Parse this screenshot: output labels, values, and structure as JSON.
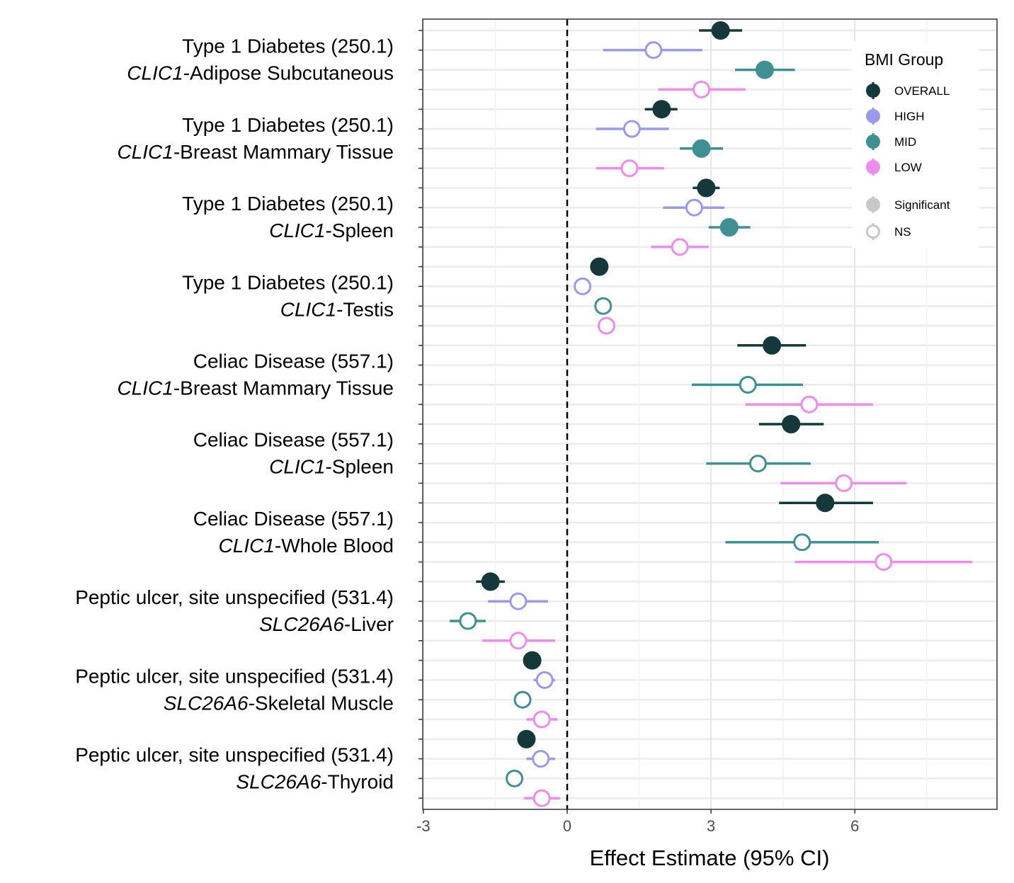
{
  "chart_data": {
    "type": "scatter",
    "subtype": "forest-plot",
    "xlabel": "Effect Estimate (95% CI)",
    "xlim": [
      -3,
      8.9
    ],
    "xticks": [
      -3,
      0,
      3,
      6
    ],
    "xtick_labels": [
      "-3",
      "0",
      "3",
      "6"
    ],
    "reference_line": 0,
    "grid": true,
    "legend": {
      "title": "BMI Group",
      "placement": "top-right",
      "groups": [
        {
          "name": "OVERALL",
          "color": "#15393a"
        },
        {
          "name": "HIGH",
          "color": "#9999ee"
        },
        {
          "name": "MID",
          "color": "#3f9092"
        },
        {
          "name": "LOW",
          "color": "#ee8bee"
        }
      ],
      "shapes": [
        {
          "name": "Significant",
          "filled": true
        },
        {
          "name": "NS",
          "filled": false
        }
      ]
    },
    "panels": [
      {
        "trait": "Type 1 Diabetes (250.1)",
        "gene": "CLIC1",
        "tissue": "-Adipose Subcutaneous",
        "estimates": [
          {
            "group": "OVERALL",
            "est": 3.2,
            "lo": 2.75,
            "hi": 3.65,
            "significant": true
          },
          {
            "group": "HIGH",
            "est": 1.8,
            "lo": 0.75,
            "hi": 2.82,
            "significant": false
          },
          {
            "group": "MID",
            "est": 4.12,
            "lo": 3.5,
            "hi": 4.75,
            "significant": true
          },
          {
            "group": "LOW",
            "est": 2.8,
            "lo": 1.9,
            "hi": 3.72,
            "significant": false
          }
        ]
      },
      {
        "trait": "Type 1 Diabetes (250.1)",
        "gene": "CLIC1",
        "tissue": "-Breast Mammary Tissue",
        "estimates": [
          {
            "group": "OVERALL",
            "est": 1.97,
            "lo": 1.62,
            "hi": 2.3,
            "significant": true
          },
          {
            "group": "HIGH",
            "est": 1.35,
            "lo": 0.6,
            "hi": 2.12,
            "significant": false
          },
          {
            "group": "MID",
            "est": 2.8,
            "lo": 2.35,
            "hi": 3.25,
            "significant": true
          },
          {
            "group": "LOW",
            "est": 1.3,
            "lo": 0.6,
            "hi": 2.02,
            "significant": false
          }
        ]
      },
      {
        "trait": "Type 1 Diabetes (250.1)",
        "gene": "CLIC1",
        "tissue": "-Spleen",
        "estimates": [
          {
            "group": "OVERALL",
            "est": 2.9,
            "lo": 2.62,
            "hi": 3.18,
            "significant": true
          },
          {
            "group": "HIGH",
            "est": 2.65,
            "lo": 2.0,
            "hi": 3.28,
            "significant": false
          },
          {
            "group": "MID",
            "est": 3.38,
            "lo": 2.95,
            "hi": 3.82,
            "significant": true
          },
          {
            "group": "LOW",
            "est": 2.35,
            "lo": 1.75,
            "hi": 2.95,
            "significant": false
          }
        ]
      },
      {
        "trait": "Type 1 Diabetes (250.1)",
        "gene": "CLIC1",
        "tissue": "-Testis",
        "estimates": [
          {
            "group": "OVERALL",
            "est": 0.67,
            "lo": 0.58,
            "hi": 0.76,
            "significant": true
          },
          {
            "group": "HIGH",
            "est": 0.32,
            "lo": 0.22,
            "hi": 0.42,
            "significant": false
          },
          {
            "group": "MID",
            "est": 0.75,
            "lo": 0.66,
            "hi": 0.84,
            "significant": false
          },
          {
            "group": "LOW",
            "est": 0.82,
            "lo": 0.73,
            "hi": 0.91,
            "significant": false
          }
        ]
      },
      {
        "trait": "Celiac Disease (557.1)",
        "gene": "CLIC1",
        "tissue": "-Breast Mammary Tissue",
        "estimates": [
          {
            "group": "OVERALL",
            "est": 4.27,
            "lo": 3.55,
            "hi": 4.98,
            "significant": true
          },
          {
            "group": "MID",
            "est": 3.77,
            "lo": 2.6,
            "hi": 4.92,
            "significant": false
          },
          {
            "group": "LOW",
            "est": 5.05,
            "lo": 3.72,
            "hi": 6.38,
            "significant": false
          }
        ]
      },
      {
        "trait": "Celiac Disease (557.1)",
        "gene": "CLIC1",
        "tissue": "-Spleen",
        "estimates": [
          {
            "group": "OVERALL",
            "est": 4.67,
            "lo": 4.0,
            "hi": 5.35,
            "significant": true
          },
          {
            "group": "MID",
            "est": 3.98,
            "lo": 2.9,
            "hi": 5.08,
            "significant": false
          },
          {
            "group": "LOW",
            "est": 5.77,
            "lo": 4.45,
            "hi": 7.08,
            "significant": false
          }
        ]
      },
      {
        "trait": "Celiac Disease (557.1)",
        "gene": "CLIC1",
        "tissue": "-Whole Blood",
        "estimates": [
          {
            "group": "OVERALL",
            "est": 5.38,
            "lo": 4.42,
            "hi": 6.38,
            "significant": true
          },
          {
            "group": "MID",
            "est": 4.9,
            "lo": 3.3,
            "hi": 6.5,
            "significant": false
          },
          {
            "group": "LOW",
            "est": 6.6,
            "lo": 4.75,
            "hi": 8.45,
            "significant": false
          }
        ]
      },
      {
        "trait": "Peptic ulcer, site unspecified (531.4)",
        "gene": "SLC26A6",
        "tissue": "-Liver",
        "estimates": [
          {
            "group": "OVERALL",
            "est": -1.6,
            "lo": -1.9,
            "hi": -1.3,
            "significant": true
          },
          {
            "group": "HIGH",
            "est": -1.02,
            "lo": -1.65,
            "hi": -0.4,
            "significant": false
          },
          {
            "group": "MID",
            "est": -2.07,
            "lo": -2.45,
            "hi": -1.7,
            "significant": false
          },
          {
            "group": "LOW",
            "est": -1.02,
            "lo": -1.77,
            "hi": -0.25,
            "significant": false
          }
        ]
      },
      {
        "trait": "Peptic ulcer, site unspecified (531.4)",
        "gene": "SLC26A6",
        "tissue": "-Skeletal Muscle",
        "estimates": [
          {
            "group": "OVERALL",
            "est": -0.73,
            "lo": -0.8,
            "hi": -0.66,
            "significant": true
          },
          {
            "group": "HIGH",
            "est": -0.47,
            "lo": -0.7,
            "hi": -0.25,
            "significant": false
          },
          {
            "group": "MID",
            "est": -0.93,
            "lo": -1.02,
            "hi": -0.84,
            "significant": false
          },
          {
            "group": "LOW",
            "est": -0.53,
            "lo": -0.85,
            "hi": -0.2,
            "significant": false
          }
        ]
      },
      {
        "trait": "Peptic ulcer, site unspecified (531.4)",
        "gene": "SLC26A6",
        "tissue": "-Thyroid",
        "estimates": [
          {
            "group": "OVERALL",
            "est": -0.85,
            "lo": -0.93,
            "hi": -0.77,
            "significant": true
          },
          {
            "group": "HIGH",
            "est": -0.55,
            "lo": -0.85,
            "hi": -0.25,
            "significant": false
          },
          {
            "group": "MID",
            "est": -1.1,
            "lo": -1.19,
            "hi": -1.01,
            "significant": false
          },
          {
            "group": "LOW",
            "est": -0.53,
            "lo": -0.9,
            "hi": -0.15,
            "significant": false
          }
        ]
      }
    ]
  }
}
